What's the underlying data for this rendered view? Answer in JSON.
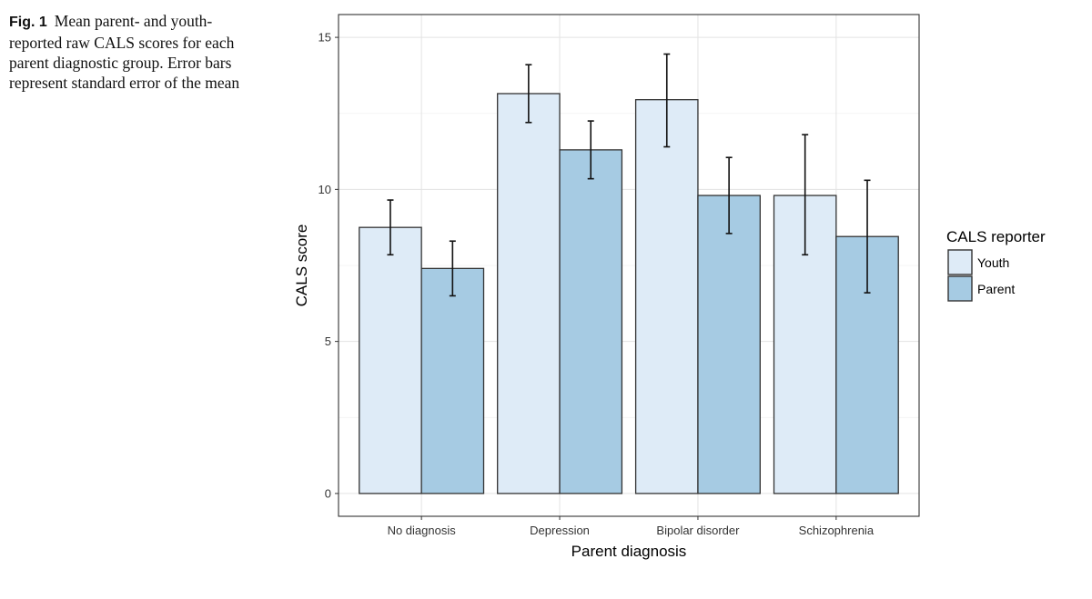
{
  "caption": {
    "label": "Fig. 1",
    "text": "Mean parent- and youth-reported raw CALS scores for each parent diagnostic group. Error bars represent standard error of the mean"
  },
  "chart_data": {
    "type": "bar",
    "title": "",
    "xlabel": "Parent diagnosis",
    "ylabel": "CALS score",
    "categories": [
      "No diagnosis",
      "Depression",
      "Bipolar disorder",
      "Schizophrenia"
    ],
    "ylim": [
      -0.75,
      15.75
    ],
    "yticks": [
      0,
      5,
      10,
      15
    ],
    "grid": true,
    "legend": {
      "title": "CALS reporter",
      "position": "right"
    },
    "series": [
      {
        "name": "Youth",
        "color": "#deebf7",
        "values": [
          8.75,
          13.15,
          12.95,
          9.8
        ],
        "error_low": [
          7.85,
          12.2,
          11.4,
          7.85
        ],
        "error_high": [
          9.65,
          14.1,
          14.45,
          11.8
        ]
      },
      {
        "name": "Parent",
        "color": "#a6cbe3",
        "values": [
          7.4,
          11.3,
          9.8,
          8.45
        ],
        "error_low": [
          6.5,
          10.35,
          8.55,
          6.6
        ],
        "error_high": [
          8.3,
          12.25,
          11.05,
          10.3
        ]
      }
    ]
  }
}
